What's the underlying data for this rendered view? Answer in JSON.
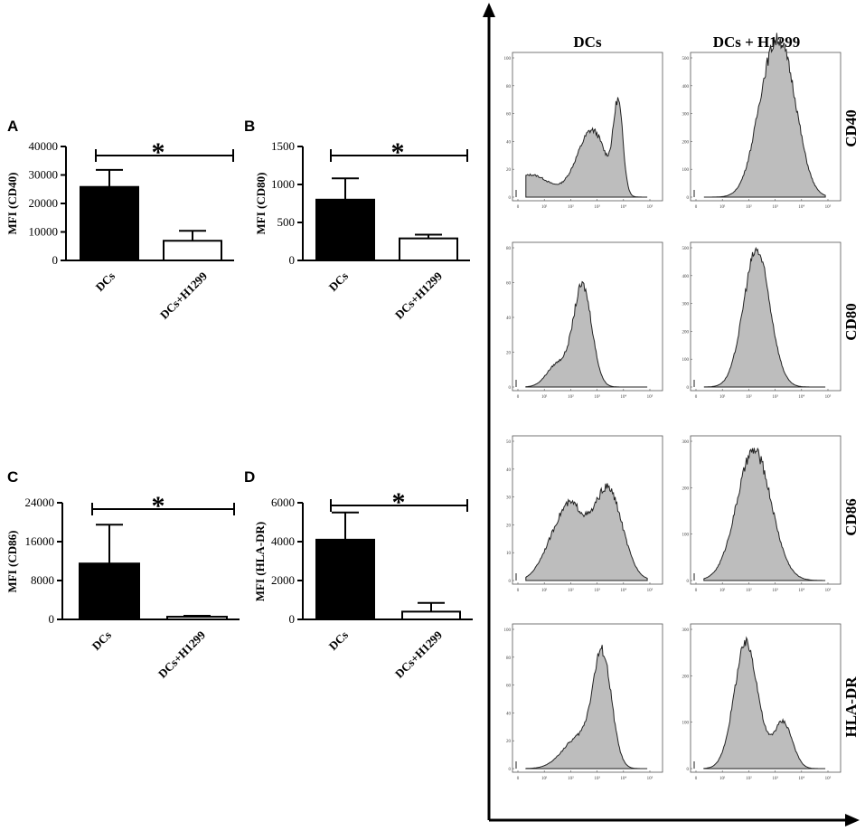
{
  "chart_data": [
    {
      "type": "bar",
      "panel": "A",
      "ylabel": "MFI (CD40)",
      "categories": [
        "DCs",
        "DCs+H1299"
      ],
      "values": [
        25800,
        6900
      ],
      "errors": [
        6000,
        3500
      ],
      "ylim": [
        0,
        40000
      ],
      "yticks": [
        "0",
        "10000",
        "20000",
        "30000",
        "40000"
      ],
      "bar_fill": [
        "#000000",
        "#ffffff"
      ],
      "significance": "*"
    },
    {
      "type": "bar",
      "panel": "B",
      "ylabel": "MFI (CD80)",
      "categories": [
        "DCs",
        "DCs+H1299"
      ],
      "values": [
        800,
        290
      ],
      "errors": [
        280,
        50
      ],
      "ylim": [
        0,
        1500
      ],
      "yticks": [
        "0",
        "500",
        "1000",
        "1500"
      ],
      "bar_fill": [
        "#000000",
        "#ffffff"
      ],
      "significance": "*"
    },
    {
      "type": "bar",
      "panel": "C",
      "ylabel": "MFI (CD86)",
      "categories": [
        "DCs",
        "DCs+H1299"
      ],
      "values": [
        11500,
        550
      ],
      "errors": [
        8000,
        200
      ],
      "ylim": [
        0,
        24000
      ],
      "yticks": [
        "0",
        "8000",
        "16000",
        "24000"
      ],
      "bar_fill": [
        "#000000",
        "#ffffff"
      ],
      "significance": "*"
    },
    {
      "type": "bar",
      "panel": "D",
      "ylabel": "MFI (HLA-DR)",
      "categories": [
        "DCs",
        "DCs+H1299"
      ],
      "values": [
        4100,
        400
      ],
      "errors": [
        1400,
        450
      ],
      "ylim": [
        0,
        6000
      ],
      "yticks": [
        "0",
        "2000",
        "4000",
        "6000"
      ],
      "bar_fill": [
        "#000000",
        "#ffffff"
      ],
      "significance": "*"
    },
    {
      "type": "histogram-grid",
      "columns": [
        "DCs",
        "DCs + H1299"
      ],
      "rows": [
        "CD40",
        "CD80",
        "CD86",
        "HLA-DR"
      ],
      "fill": "#bdbdbd",
      "x_ticks": [
        "0",
        "10¹",
        "10²",
        "10³",
        "10⁴",
        "10⁵"
      ],
      "cells": [
        {
          "row": "CD40",
          "col": "DCs",
          "yticks": [
            "0",
            "20",
            "40",
            "60",
            "80",
            "100"
          ],
          "ymax": 100,
          "peaks": [
            {
              "x": 0.5,
              "w": 0.7,
              "h": 16
            },
            {
              "x": 2.5,
              "w": 0.5,
              "h": 25
            },
            {
              "x": 3.0,
              "w": 0.45,
              "h": 30
            },
            {
              "x": 3.8,
              "w": 0.18,
              "h": 63
            }
          ]
        },
        {
          "row": "CD40",
          "col": "DCs + H1299",
          "yticks": [
            "0",
            "100",
            "200",
            "300",
            "400",
            "500"
          ],
          "ymax": 500,
          "peaks": [
            {
              "x": 2.8,
              "w": 0.55,
              "h": 405
            },
            {
              "x": 3.5,
              "w": 0.5,
              "h": 300
            }
          ]
        },
        {
          "row": "CD80",
          "col": "DCs",
          "yticks": [
            "0",
            "20",
            "40",
            "60",
            "80"
          ],
          "ymax": 80,
          "peaks": [
            {
              "x": 1.5,
              "w": 0.4,
              "h": 13
            },
            {
              "x": 2.45,
              "w": 0.35,
              "h": 58
            }
          ]
        },
        {
          "row": "CD80",
          "col": "DCs + H1299",
          "yticks": [
            "0",
            "100",
            "200",
            "300",
            "400",
            "500"
          ],
          "ymax": 500,
          "peaks": [
            {
              "x": 2.3,
              "w": 0.5,
              "h": 490
            }
          ]
        },
        {
          "row": "CD86",
          "col": "DCs",
          "yticks": [
            "0",
            "10",
            "20",
            "30",
            "40",
            "50"
          ],
          "ymax": 50,
          "peaks": [
            {
              "x": 2.0,
              "w": 0.5,
              "h": 25
            },
            {
              "x": 3.4,
              "w": 0.55,
              "h": 33
            },
            {
              "x": 1.2,
              "w": 0.45,
              "h": 8
            }
          ]
        },
        {
          "row": "CD86",
          "col": "DCs + H1299",
          "yticks": [
            "0",
            "100",
            "200",
            "300"
          ],
          "ymax": 300,
          "peaks": [
            {
              "x": 2.2,
              "w": 0.65,
              "h": 280
            }
          ]
        },
        {
          "row": "HLA-DR",
          "col": "DCs",
          "yticks": [
            "0",
            "20",
            "40",
            "60",
            "80",
            "100"
          ],
          "ymax": 100,
          "peaks": [
            {
              "x": 3.2,
              "w": 0.35,
              "h": 78
            },
            {
              "x": 2.3,
              "w": 0.6,
              "h": 22
            }
          ]
        },
        {
          "row": "HLA-DR",
          "col": "DCs + H1299",
          "yticks": [
            "0",
            "100",
            "200",
            "300"
          ],
          "ymax": 300,
          "peaks": [
            {
              "x": 1.9,
              "w": 0.45,
              "h": 270
            },
            {
              "x": 3.3,
              "w": 0.35,
              "h": 100
            }
          ]
        }
      ]
    }
  ]
}
